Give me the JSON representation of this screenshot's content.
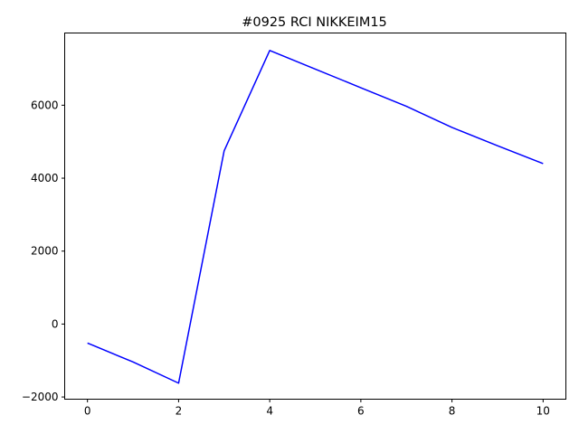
{
  "chart_data": {
    "type": "line",
    "title": "#0925 RCI NIKKEIM15",
    "xlabel": "",
    "ylabel": "",
    "xlim": [
      -0.5,
      10.5
    ],
    "ylim": [
      -2060,
      7980
    ],
    "xticks": [
      0,
      2,
      4,
      6,
      8,
      10
    ],
    "yticks": [
      -2000,
      0,
      2000,
      4000,
      6000
    ],
    "grid": false,
    "series": [
      {
        "color": "#0000ff",
        "x": [
          0,
          1,
          2,
          3,
          4,
          5,
          6,
          7,
          8,
          9,
          10
        ],
        "y": [
          -520,
          -1040,
          -1620,
          4750,
          7500,
          6990,
          6480,
          5970,
          5390,
          4890,
          4400
        ]
      }
    ]
  }
}
